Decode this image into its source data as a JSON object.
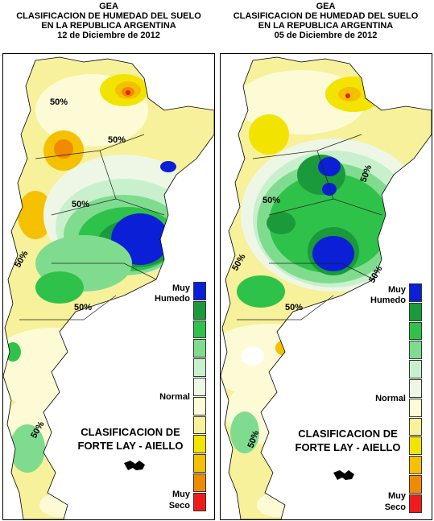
{
  "maps": [
    {
      "org": "GEA",
      "title_line1": "CLASIFICACION DE HUMEDAD DEL SUELO",
      "title_line2": "EN LA REPUBLICA ARGENTINA",
      "date": "12 de Diciembre de 2012",
      "contour_label": "50%"
    },
    {
      "org": "GEA",
      "title_line1": "CLASIFICACION DE HUMEDAD DEL SUELO",
      "title_line2": "EN LA REPUBLICA ARGENTINA",
      "date": "05 de Diciembre de 2012",
      "contour_label": "50%"
    }
  ],
  "legend": {
    "top_label_1": "Muy",
    "top_label_2": "Humedo",
    "middle_label": "Normal",
    "bottom_label_1": "Muy",
    "bottom_label_2": "Seco",
    "classes": [
      "#0a1fd6",
      "#1a9a3a",
      "#2fc24a",
      "#7fdc8f",
      "#c8f0cc",
      "#eef7e6",
      "#fdfbd6",
      "#f6f19a",
      "#f3e300",
      "#f5c000",
      "#f08a00",
      "#ee1c1c"
    ]
  },
  "credit": {
    "line1": "CLASIFICACION DE",
    "line2": "FORTE LAY - AIELLO"
  }
}
